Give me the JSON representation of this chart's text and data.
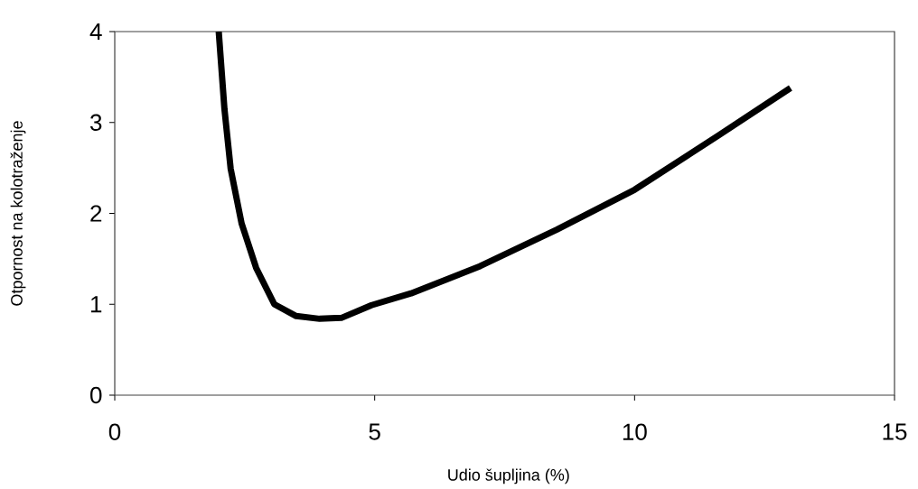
{
  "chart_data": {
    "type": "line",
    "xlabel": "Udio šupljina (%)",
    "ylabel": "Otpornost na kolotraženje",
    "xlim": [
      0,
      15
    ],
    "ylim": [
      0,
      4
    ],
    "xticks": [
      0,
      5,
      10,
      15
    ],
    "yticks": [
      0,
      1,
      2,
      3,
      4
    ],
    "marker": "none",
    "line_style": "solid",
    "series": [
      {
        "color": "#000000",
        "x": [
          2.0,
          2.11,
          2.23,
          2.44,
          2.72,
          3.07,
          3.49,
          3.94,
          4.36,
          4.94,
          5.7,
          7.03,
          8.5,
          10.0,
          11.62,
          13.0
        ],
        "values": [
          4.0,
          3.15,
          2.49,
          1.89,
          1.4,
          1.0,
          0.87,
          0.84,
          0.85,
          0.99,
          1.12,
          1.42,
          1.82,
          2.26,
          2.86,
          3.38
        ]
      }
    ]
  }
}
